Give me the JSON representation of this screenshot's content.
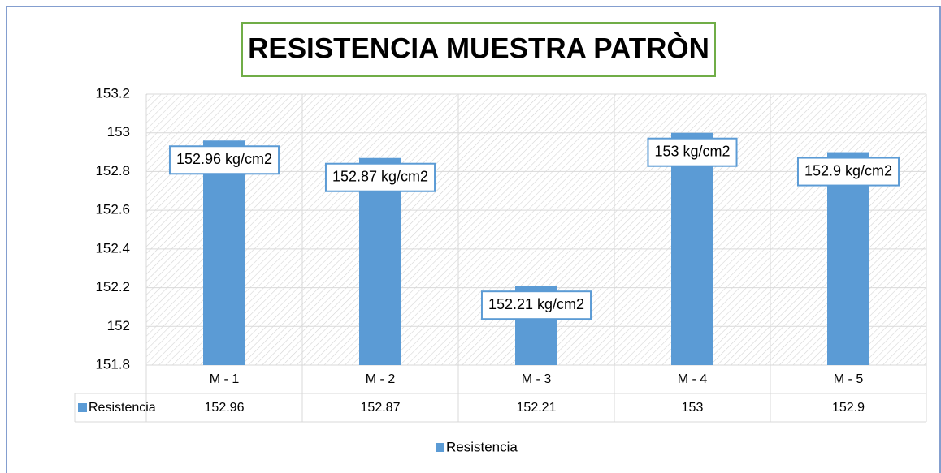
{
  "chart_data": {
    "type": "bar",
    "title": "RESISTENCIA MUESTRA PATRÒN",
    "categories": [
      "M - 1",
      "M - 2",
      "M - 3",
      "M - 4",
      "M - 5"
    ],
    "series": [
      {
        "name": "Resistencia",
        "color": "#5b9bd5",
        "values": [
          152.96,
          152.87,
          152.21,
          153,
          152.9
        ],
        "value_labels": [
          "152.96 kg/cm2",
          "152.87 kg/cm2",
          "152.21 kg/cm2",
          "153 kg/cm2",
          "152.9 kg/cm2"
        ]
      }
    ],
    "ylim": [
      151.8,
      153.2
    ],
    "yticks": [
      151.8,
      152,
      152.2,
      152.4,
      152.6,
      152.8,
      153,
      153.2
    ],
    "grid": true,
    "legend": "bottom",
    "data_table": true
  }
}
